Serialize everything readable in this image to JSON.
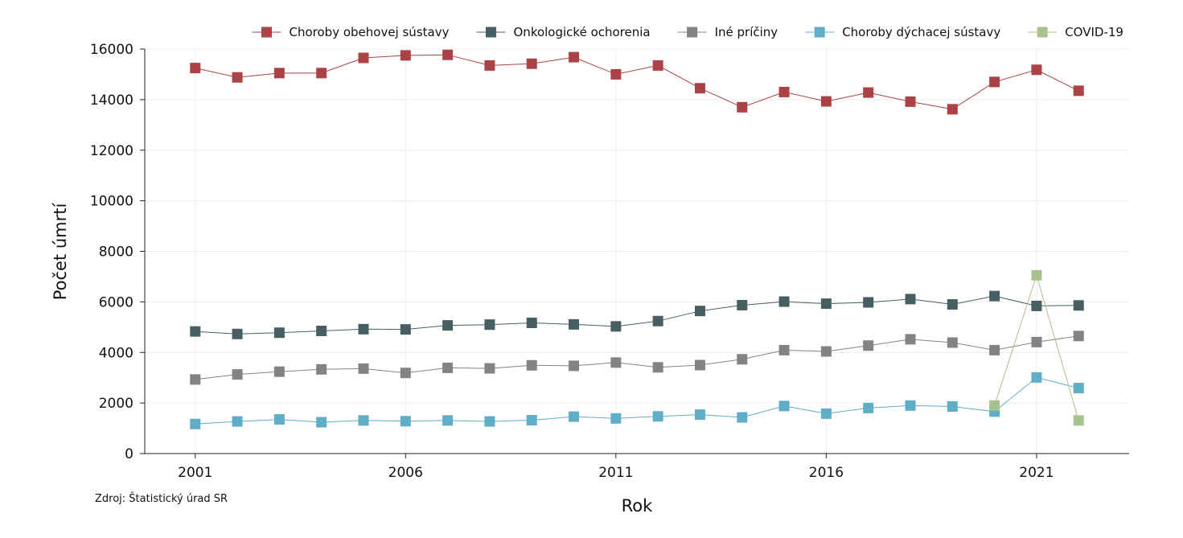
{
  "chart_data": {
    "type": "line",
    "title": "",
    "xlabel": "Rok",
    "ylabel": "Počet úmrtí",
    "source": "Zdroj: Štatistický úrad SR",
    "xlim": [
      1999.8,
      2023.2
    ],
    "ylim": [
      0,
      16000
    ],
    "x_ticks": [
      2001,
      2006,
      2011,
      2016,
      2021
    ],
    "y_ticks": [
      0,
      2000,
      4000,
      6000,
      8000,
      10000,
      12000,
      14000,
      16000
    ],
    "grid": true,
    "legend_position": "top",
    "series": [
      {
        "name": "Choroby obehovej sústavy",
        "color": "#ab4246",
        "x": [
          2001,
          2002,
          2003,
          2004,
          2005,
          2006,
          2007,
          2008,
          2009,
          2010,
          2011,
          2012,
          2013,
          2014,
          2015,
          2016,
          2017,
          2018,
          2019,
          2020,
          2021,
          2022
        ],
        "values": [
          15250,
          14880,
          15050,
          15050,
          15650,
          15750,
          15770,
          15350,
          15420,
          15680,
          15000,
          15350,
          14450,
          13700,
          14300,
          13930,
          14280,
          13920,
          13620,
          14700,
          15180,
          14350
        ]
      },
      {
        "name": "Onkologické ochorenia",
        "color": "#475e62",
        "x": [
          2001,
          2002,
          2003,
          2004,
          2005,
          2006,
          2007,
          2008,
          2009,
          2010,
          2011,
          2012,
          2013,
          2014,
          2015,
          2016,
          2017,
          2018,
          2019,
          2020,
          2021,
          2022
        ],
        "values": [
          4830,
          4730,
          4780,
          4850,
          4920,
          4910,
          5070,
          5100,
          5170,
          5110,
          5030,
          5240,
          5640,
          5870,
          6010,
          5930,
          5980,
          6110,
          5900,
          6230,
          5840,
          5860
        ]
      },
      {
        "name": "Iné príčiny",
        "color": "#838383",
        "x": [
          2001,
          2002,
          2003,
          2004,
          2005,
          2006,
          2007,
          2008,
          2009,
          2010,
          2011,
          2012,
          2013,
          2014,
          2015,
          2016,
          2017,
          2018,
          2019,
          2020,
          2021,
          2022
        ],
        "values": [
          2930,
          3130,
          3240,
          3330,
          3360,
          3190,
          3390,
          3370,
          3490,
          3470,
          3600,
          3410,
          3500,
          3730,
          4090,
          4040,
          4270,
          4520,
          4390,
          4090,
          4410,
          4650
        ]
      },
      {
        "name": "Choroby dýchacej sústavy",
        "color": "#5fadc6",
        "x": [
          2001,
          2002,
          2003,
          2004,
          2005,
          2006,
          2007,
          2008,
          2009,
          2010,
          2011,
          2012,
          2013,
          2014,
          2015,
          2016,
          2017,
          2018,
          2019,
          2020,
          2021,
          2022
        ],
        "values": [
          1170,
          1270,
          1350,
          1240,
          1310,
          1280,
          1310,
          1270,
          1320,
          1460,
          1390,
          1470,
          1540,
          1430,
          1880,
          1580,
          1800,
          1900,
          1860,
          1660,
          3010,
          2590
        ]
      },
      {
        "name": "COVID-19",
        "color": "#a8c28d",
        "x": [
          2020,
          2021,
          2022
        ],
        "values": [
          1900,
          7050,
          1310
        ]
      }
    ]
  }
}
